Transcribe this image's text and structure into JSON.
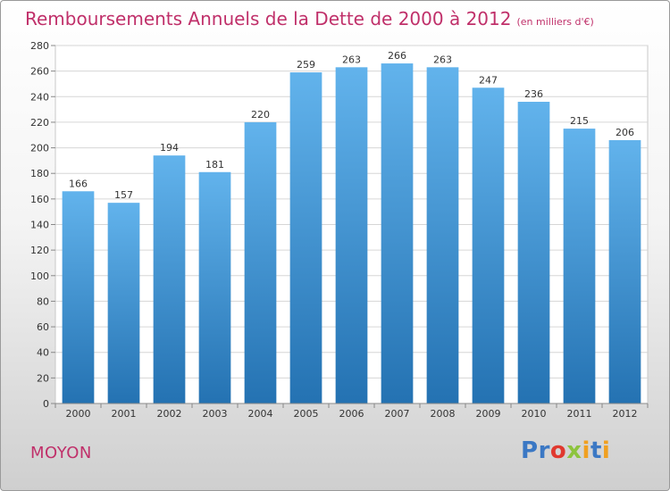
{
  "title": "Remboursements Annuels de la Dette de 2000 à 2012",
  "unit_note": "(en milliers d'€)",
  "commune": "MOYON",
  "logo": {
    "letters": [
      {
        "char": "P",
        "color": "#3b78c4"
      },
      {
        "char": "r",
        "color": "#3b78c4"
      },
      {
        "char": "o",
        "color": "#e0392f"
      },
      {
        "char": "x",
        "color": "#8dc43e"
      },
      {
        "char": "i",
        "color": "#f0a020"
      },
      {
        "char": "t",
        "color": "#3b78c4"
      },
      {
        "char": "i",
        "color": "#f0a020"
      }
    ]
  },
  "colors": {
    "title": "#c0306a",
    "bar_top": "#62b3ec",
    "bar_bottom": "#2472b2",
    "grid": "#d6d6d6",
    "axis_text": "#333333"
  },
  "chart_data": {
    "type": "bar",
    "title": "Remboursements Annuels de la Dette de 2000 à 2012",
    "xlabel": "",
    "ylabel": "(en milliers d'€)",
    "categories": [
      "2000",
      "2001",
      "2002",
      "2003",
      "2004",
      "2005",
      "2006",
      "2007",
      "2008",
      "2009",
      "2010",
      "2011",
      "2012"
    ],
    "values": [
      166,
      157,
      194,
      181,
      220,
      259,
      263,
      266,
      263,
      247,
      236,
      215,
      206
    ],
    "ylim": [
      0,
      280
    ],
    "yticks": [
      0,
      20,
      40,
      60,
      80,
      100,
      120,
      140,
      160,
      180,
      200,
      220,
      240,
      260,
      280
    ],
    "grid": true,
    "legend": "none"
  }
}
